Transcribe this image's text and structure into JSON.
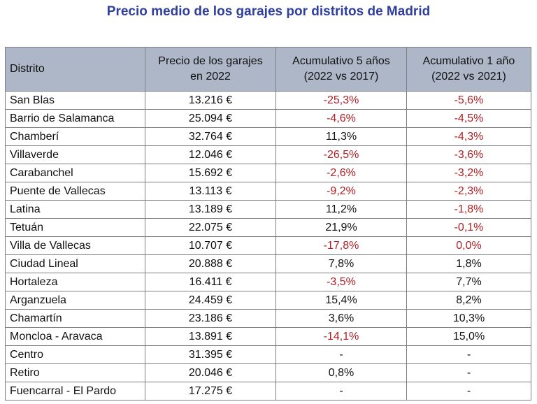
{
  "title": "Precio medio de los garajes por distritos de Madrid",
  "colors": {
    "title": "#2f3f9e",
    "header_bg": "#aeb7c8",
    "negative": "#b01e22"
  },
  "chart_data": {
    "type": "table",
    "title": "Precio medio de los garajes por distritos de Madrid",
    "columns": [
      "Distrito",
      "Precio de los garajes en 2022",
      "Acumulativo 5 años (2022 vs 2017)",
      "Acumulativo 1 año (2022 vs 2021)"
    ],
    "column_lines": [
      [
        "Distrito"
      ],
      [
        "Precio de los garajes",
        "en 2022"
      ],
      [
        "Acumulativo 5 años",
        "(2022 vs 2017)"
      ],
      [
        "Acumulativo 1 año",
        "(2022 vs 2021)"
      ]
    ],
    "rows": [
      [
        "San Blas",
        "13.216 €",
        "-25,3%",
        "-5,6%"
      ],
      [
        "Barrio de Salamanca",
        "25.094 €",
        "-4,6%",
        "-4,5%"
      ],
      [
        "Chamberí",
        "32.764 €",
        "11,3%",
        "-4,3%"
      ],
      [
        "Villaverde",
        "12.046 €",
        "-26,5%",
        "-3,6%"
      ],
      [
        "Carabanchel",
        "15.692 €",
        "-2,6%",
        "-3,2%"
      ],
      [
        "Puente de Vallecas",
        "13.113 €",
        "-9,2%",
        "-2,3%"
      ],
      [
        "Latina",
        "13.189 €",
        "11,2%",
        "-1,8%"
      ],
      [
        "Tetuán",
        "22.075 €",
        "21,9%",
        "-0,1%"
      ],
      [
        "Villa de Vallecas",
        "10.707 €",
        "-17,8%",
        "0,0%"
      ],
      [
        "Ciudad Lineal",
        "20.888 €",
        "7,8%",
        "1,8%"
      ],
      [
        "Hortaleza",
        "16.411 €",
        "-3,5%",
        "7,7%"
      ],
      [
        "Arganzuela",
        "24.459 €",
        "15,4%",
        "8,2%"
      ],
      [
        "Chamartín",
        "23.186 €",
        "3,6%",
        "10,3%"
      ],
      [
        "Moncloa - Aravaca",
        "13.891 €",
        "-14,1%",
        "15,0%"
      ],
      [
        "Centro",
        "31.395 €",
        "-",
        "-"
      ],
      [
        "Retiro",
        "20.046 €",
        "0,8%",
        "-"
      ],
      [
        "Fuencarral - El Pardo",
        "17.275 €",
        "-",
        "-"
      ]
    ],
    "negative_cells": [
      [
        0,
        2
      ],
      [
        0,
        3
      ],
      [
        1,
        2
      ],
      [
        1,
        3
      ],
      [
        2,
        3
      ],
      [
        3,
        2
      ],
      [
        3,
        3
      ],
      [
        4,
        2
      ],
      [
        4,
        3
      ],
      [
        5,
        2
      ],
      [
        5,
        3
      ],
      [
        6,
        3
      ],
      [
        7,
        3
      ],
      [
        8,
        2
      ],
      [
        8,
        3
      ],
      [
        10,
        2
      ],
      [
        13,
        2
      ]
    ]
  }
}
